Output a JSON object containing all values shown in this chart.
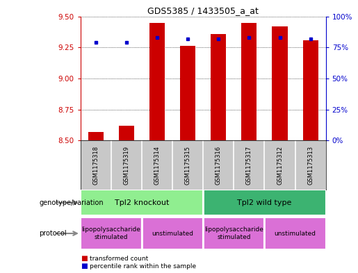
{
  "title": "GDS5385 / 1433505_a_at",
  "samples": [
    "GSM1175318",
    "GSM1175319",
    "GSM1175314",
    "GSM1175315",
    "GSM1175316",
    "GSM1175317",
    "GSM1175312",
    "GSM1175313"
  ],
  "red_values": [
    8.57,
    8.62,
    9.45,
    9.26,
    9.36,
    9.45,
    9.42,
    9.31
  ],
  "blue_values": [
    79,
    79,
    83,
    82,
    82,
    83,
    83,
    82
  ],
  "ylim_left": [
    8.5,
    9.5
  ],
  "ylim_right": [
    0,
    100
  ],
  "yticks_left": [
    8.5,
    8.75,
    9.0,
    9.25,
    9.5
  ],
  "yticks_right": [
    0,
    25,
    50,
    75,
    100
  ],
  "genotype_groups": [
    {
      "label": "Tpl2 knockout",
      "start": 0,
      "end": 4,
      "color": "#90ee90"
    },
    {
      "label": "Tpl2 wild type",
      "start": 4,
      "end": 8,
      "color": "#3cb371"
    }
  ],
  "protocol_groups": [
    {
      "label": "lipopolysaccharide\nstimulated",
      "start": 0,
      "end": 2,
      "color": "#da70d6"
    },
    {
      "label": "unstimulated",
      "start": 2,
      "end": 4,
      "color": "#da70d6"
    },
    {
      "label": "lipopolysaccharide\nstimulated",
      "start": 4,
      "end": 6,
      "color": "#da70d6"
    },
    {
      "label": "unstimulated",
      "start": 6,
      "end": 8,
      "color": "#da70d6"
    }
  ],
  "bar_color": "#cc0000",
  "dot_color": "#0000cc",
  "sample_bg": "#c8c8c8",
  "plot_bg": "#ffffff",
  "left_tick_color": "#cc0000",
  "right_tick_color": "#0000cc",
  "bar_width": 0.5
}
